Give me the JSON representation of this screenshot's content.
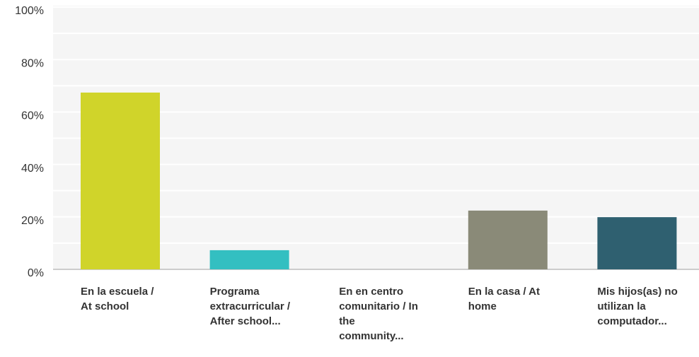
{
  "chart_data": {
    "type": "bar",
    "categories": [
      "En la escuela / At school",
      "Programa extracurricular / After school...",
      "En en centro comunitario / In the community...",
      "En la casa / At home",
      "Mis hijos(as) no utilizan la computador..."
    ],
    "values": [
      67.4,
      7.3,
      0,
      22.4,
      19.9
    ],
    "colors": [
      "#d0d42a",
      "#33bfc1",
      "#e07b39",
      "#8a8a78",
      "#2f6070"
    ],
    "ylim": [
      0,
      100
    ],
    "yticks": [
      {
        "value": 0,
        "label": "0%"
      },
      {
        "value": 20,
        "label": "20%"
      },
      {
        "value": 40,
        "label": "40%"
      },
      {
        "value": 60,
        "label": "60%"
      },
      {
        "value": 80,
        "label": "80%"
      },
      {
        "value": 100,
        "label": "100%"
      }
    ],
    "minor_gridlines": [
      10,
      30,
      50,
      70,
      90
    ],
    "grid": true
  }
}
